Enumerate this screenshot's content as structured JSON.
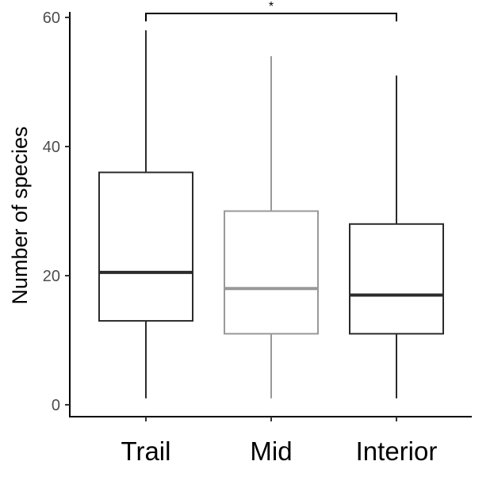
{
  "chart_data": {
    "type": "boxplot",
    "title": "",
    "xlabel": "",
    "ylabel": "Number of species",
    "ylim": [
      0,
      60
    ],
    "yticks": [
      0,
      20,
      40,
      60
    ],
    "grid": false,
    "categories": [
      "Trail",
      "Mid",
      "Interior"
    ],
    "boxes": [
      {
        "category": "Trail",
        "min": 1,
        "q1": 13,
        "median": 20.5,
        "q3": 36,
        "max": 58,
        "color": "#2b2b2b"
      },
      {
        "category": "Mid",
        "min": 1,
        "q1": 11,
        "median": 18,
        "q3": 30,
        "max": 54,
        "color": "#999999"
      },
      {
        "category": "Interior",
        "min": 1,
        "q1": 11,
        "median": 17,
        "q3": 28,
        "max": 51,
        "color": "#2b2b2b"
      }
    ],
    "annotations": [
      {
        "type": "significance-bracket",
        "from": "Trail",
        "to": "Interior",
        "label": "*"
      }
    ]
  }
}
